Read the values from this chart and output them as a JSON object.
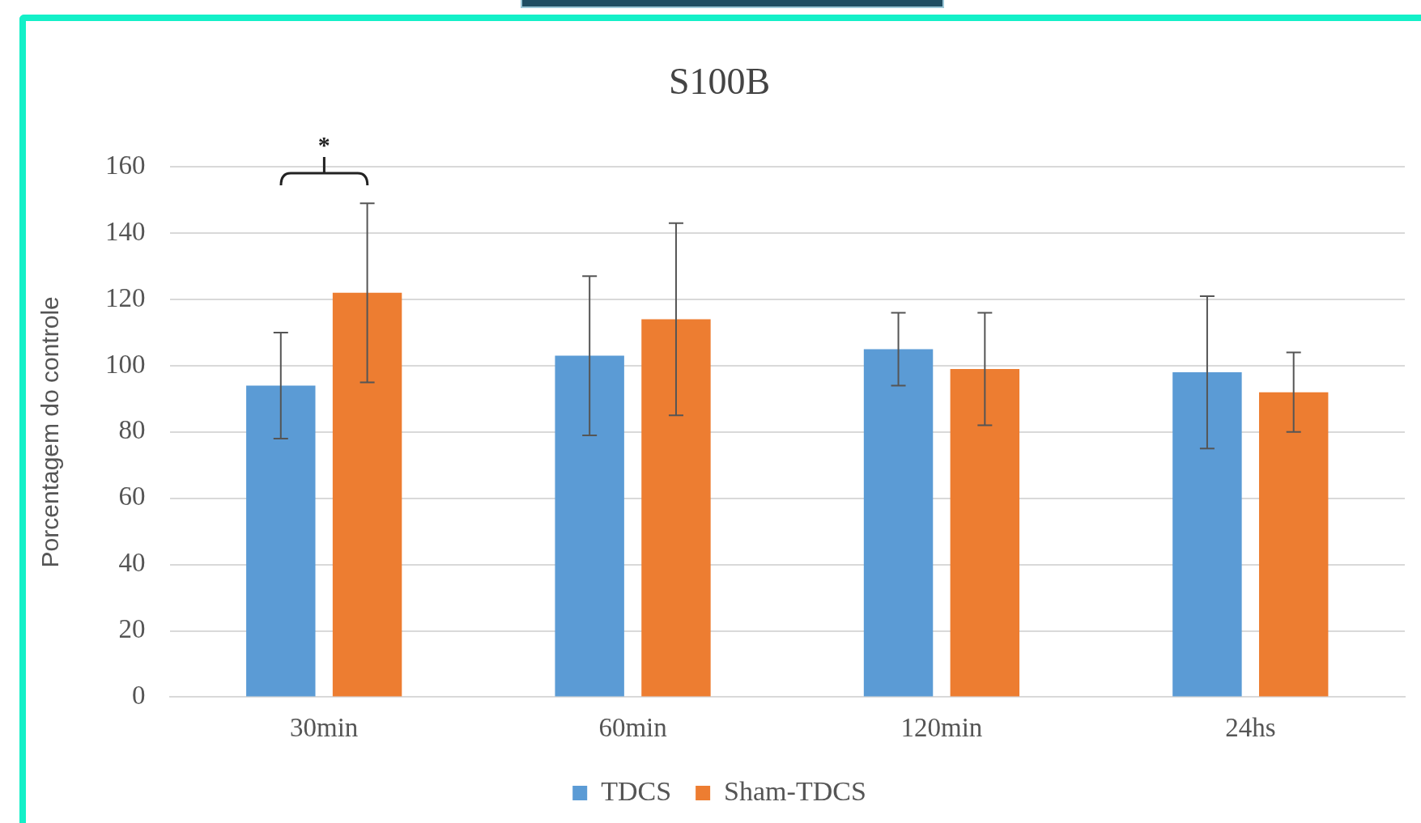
{
  "chart_data": {
    "type": "bar",
    "title": "S100B",
    "ylabel": "Porcentagem do controle",
    "categories": [
      "30min",
      "60min",
      "120min",
      "24hs"
    ],
    "series": [
      {
        "name": "TDCS",
        "color": "#5b9bd5",
        "values": [
          94,
          103,
          105,
          98
        ],
        "errors": [
          16,
          24,
          11,
          23
        ]
      },
      {
        "name": "Sham-TDCS",
        "color": "#ed7d31",
        "values": [
          122,
          114,
          99,
          92
        ],
        "errors": [
          27,
          29,
          17,
          12
        ]
      }
    ],
    "ylim": [
      0,
      160
    ],
    "yticks": [
      0,
      20,
      40,
      60,
      80,
      100,
      120,
      140,
      160
    ],
    "grid": "y",
    "legend": "bottom",
    "annotations": [
      "*"
    ]
  }
}
